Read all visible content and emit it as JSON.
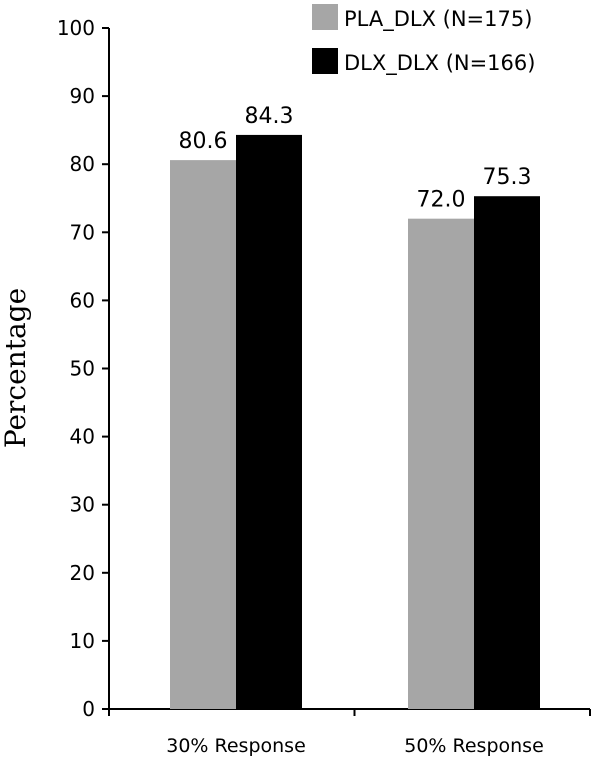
{
  "chart_data": {
    "type": "bar",
    "title": "",
    "xlabel": "",
    "ylabel": "Percentage",
    "ylim": [
      0,
      100
    ],
    "yticks": [
      0,
      10,
      20,
      30,
      40,
      50,
      60,
      70,
      80,
      90,
      100
    ],
    "categories": [
      "30% Response",
      "50% Response"
    ],
    "series": [
      {
        "name": "PLA_DLX (N=175)",
        "color": "#a6a6a6",
        "values": [
          80.6,
          72.0
        ],
        "labels": [
          "80.6",
          "72.0"
        ]
      },
      {
        "name": "DLX_DLX (N=166)",
        "color": "#000000",
        "values": [
          84.3,
          75.3
        ],
        "labels": [
          "84.3",
          "75.3"
        ]
      }
    ],
    "grid": false,
    "legend_position": "top-right"
  }
}
